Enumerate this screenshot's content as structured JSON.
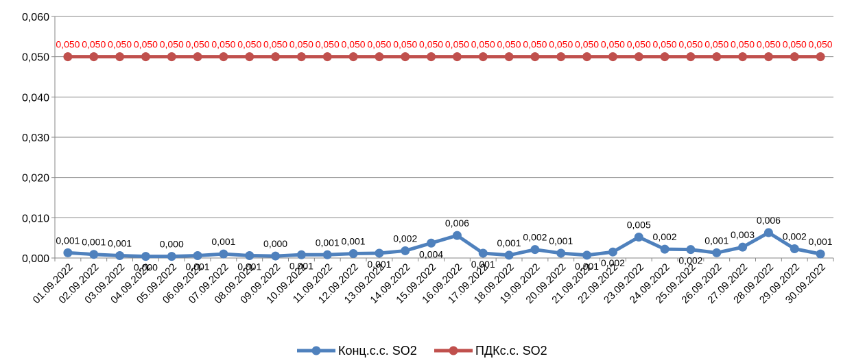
{
  "chart_data": {
    "type": "line",
    "title": "",
    "xlabel": "",
    "ylabel": "",
    "ylim": [
      0,
      0.06
    ],
    "yticks": [
      "0,000",
      "0,010",
      "0,020",
      "0,030",
      "0,040",
      "0,050",
      "0,060"
    ],
    "grid": true,
    "legend_position": "bottom",
    "categories": [
      "01.09.2022",
      "02.09.2022",
      "03.09.2022",
      "04.09.2022",
      "05.09.2022",
      "06.09.2022",
      "07.09.2022",
      "08.09.2022",
      "09.09.2022",
      "10.09.2022",
      "11.09.2022",
      "12.09.2022",
      "13.09.2022",
      "14.09.2022",
      "15.09.2022",
      "16.09.2022",
      "17.09.2022",
      "18.09.2022",
      "19.09.2022",
      "20.09.2022",
      "21.09.2022",
      "22.09.2022",
      "23.09.2022",
      "24.09.2022",
      "25.09.2022",
      "26.09.2022",
      "27.09.2022",
      "28.09.2022",
      "29.09.2022",
      "30.09.2022"
    ],
    "series": [
      {
        "name": "Конц.с.с. SO2",
        "color": "#4f81bd",
        "label_color": "#000000",
        "values": [
          0.0013,
          0.0009,
          0.0006,
          0.0004,
          0.0004,
          0.0006,
          0.001,
          0.0006,
          0.0005,
          0.0008,
          0.0008,
          0.0011,
          0.0012,
          0.0018,
          0.0037,
          0.0056,
          0.0012,
          0.0007,
          0.0021,
          0.0012,
          0.0007,
          0.0015,
          0.0052,
          0.0022,
          0.0021,
          0.0013,
          0.0027,
          0.0063,
          0.0023,
          0.001
        ],
        "labels": [
          "0,001",
          "0,001",
          "0,001",
          "0,000",
          "0,000",
          "0,001",
          "0,001",
          "0,001",
          "0,000",
          "0,001",
          "0,001",
          "0,001",
          "0,001",
          "0,002",
          "0,004",
          "0,006",
          "0,001",
          "0,001",
          "0,002",
          "0,001",
          "0,001",
          "0,002",
          "0,005",
          "0,002",
          "0,002",
          "0,001",
          "0,003",
          "0,006",
          "0,002",
          "0,001"
        ],
        "label_positions": [
          "above",
          "above",
          "above",
          "below",
          "above",
          "below",
          "above",
          "below",
          "above",
          "below",
          "above",
          "above",
          "below",
          "above",
          "below",
          "above",
          "below",
          "above",
          "above",
          "above",
          "below",
          "below",
          "above",
          "above",
          "below",
          "above",
          "above",
          "above",
          "above",
          "above"
        ]
      },
      {
        "name": "ПДКс.с. SO2",
        "color": "#c0504d",
        "label_color": "#ff0000",
        "values": [
          0.05,
          0.05,
          0.05,
          0.05,
          0.05,
          0.05,
          0.05,
          0.05,
          0.05,
          0.05,
          0.05,
          0.05,
          0.05,
          0.05,
          0.05,
          0.05,
          0.05,
          0.05,
          0.05,
          0.05,
          0.05,
          0.05,
          0.05,
          0.05,
          0.05,
          0.05,
          0.05,
          0.05,
          0.05,
          0.05
        ],
        "labels": [
          "0,050",
          "0,050",
          "0,050",
          "0,050",
          "0,050",
          "0,050",
          "0,050",
          "0,050",
          "0,050",
          "0,050",
          "0,050",
          "0,050",
          "0,050",
          "0,050",
          "0,050",
          "0,050",
          "0,050",
          "0,050",
          "0,050",
          "0,050",
          "0,050",
          "0,050",
          "0,050",
          "0,050",
          "0,050",
          "0,050",
          "0,050",
          "0,050",
          "0,050",
          "0,050"
        ],
        "label_positions": [
          "above",
          "above",
          "above",
          "above",
          "above",
          "above",
          "above",
          "above",
          "above",
          "above",
          "above",
          "above",
          "above",
          "above",
          "above",
          "above",
          "above",
          "above",
          "above",
          "above",
          "above",
          "above",
          "above",
          "above",
          "above",
          "above",
          "above",
          "above",
          "above",
          "above"
        ]
      }
    ]
  }
}
